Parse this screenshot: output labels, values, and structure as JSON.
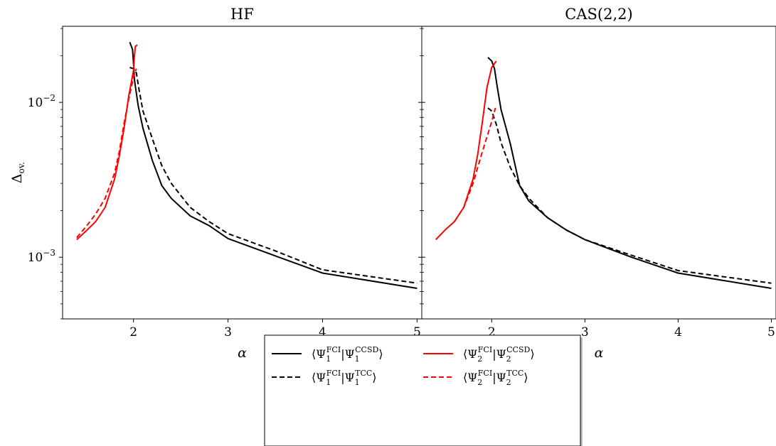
{
  "chart_data": [
    {
      "type": "line",
      "title": "HF",
      "xlabel": "α",
      "ylabel": "Δ",
      "ylabel_subscript": "ov.",
      "yscale": "log",
      "xlim": [
        1.25,
        5.05
      ],
      "ylim": [
        0.0004,
        0.031
      ],
      "x_ticks": [
        {
          "value": 2,
          "label": "2"
        },
        {
          "value": 3,
          "label": "3"
        },
        {
          "value": 4,
          "label": "4"
        },
        {
          "value": 5,
          "label": "5"
        }
      ],
      "y_ticks": [
        {
          "value": 0.001,
          "base": "10",
          "exponent": "−3"
        },
        {
          "value": 0.01,
          "base": "10",
          "exponent": "−2"
        }
      ],
      "series": [
        {
          "key": "s1ccsd",
          "color": "#000000",
          "dash": "solid",
          "x": [
            1.96,
            1.99,
            2.0,
            2.01,
            2.05,
            2.1,
            2.2,
            2.3,
            2.4,
            2.6,
            2.8,
            3.0,
            3.5,
            4.0,
            5.0
          ],
          "y": [
            0.0245,
            0.022,
            0.018,
            0.014,
            0.0095,
            0.0068,
            0.0042,
            0.0029,
            0.0024,
            0.00185,
            0.0016,
            0.00132,
            0.00102,
            0.00079,
            0.00063
          ]
        },
        {
          "key": "s1tcc",
          "color": "#000000",
          "dash": "dashed",
          "x": [
            1.96,
            2.0,
            2.03,
            2.06,
            2.1,
            2.2,
            2.3,
            2.4,
            2.6,
            2.8,
            3.0,
            3.5,
            4.0,
            5.0
          ],
          "y": [
            0.0168,
            0.0165,
            0.0155,
            0.012,
            0.0088,
            0.0058,
            0.0039,
            0.003,
            0.0021,
            0.0017,
            0.00142,
            0.0011,
            0.00083,
            0.00068
          ]
        },
        {
          "key": "s2ccsd",
          "color": "#ff0000",
          "dash": "solid",
          "x": [
            1.4,
            1.5,
            1.6,
            1.7,
            1.8,
            1.85,
            1.9,
            1.95,
            2.0,
            2.01,
            2.02,
            2.04
          ],
          "y": [
            0.0013,
            0.00148,
            0.0017,
            0.0021,
            0.0032,
            0.0045,
            0.0068,
            0.011,
            0.016,
            0.02,
            0.023,
            0.0235
          ]
        },
        {
          "key": "s2tcc",
          "color": "#ff0000",
          "dash": "dashed",
          "x": [
            1.4,
            1.5,
            1.6,
            1.7,
            1.8,
            1.85,
            1.9,
            1.95,
            2.0,
            2.03
          ],
          "y": [
            0.00134,
            0.00158,
            0.0019,
            0.0024,
            0.0035,
            0.0048,
            0.0073,
            0.0105,
            0.0145,
            0.0165
          ]
        }
      ]
    },
    {
      "type": "line",
      "title": "CAS(2,2)",
      "xlabel": "α",
      "ylabel": "",
      "yscale": "log",
      "xlim": [
        1.25,
        5.05
      ],
      "ylim": [
        0.0004,
        0.031
      ],
      "x_ticks": [
        {
          "value": 2,
          "label": "2"
        },
        {
          "value": 3,
          "label": "3"
        },
        {
          "value": 4,
          "label": "4"
        },
        {
          "value": 5,
          "label": "5"
        }
      ],
      "y_ticks": [],
      "series": [
        {
          "key": "s1ccsd",
          "color": "#000000",
          "dash": "solid",
          "x": [
            1.96,
            2.0,
            2.03,
            2.06,
            2.1,
            2.2,
            2.3,
            2.4,
            2.6,
            2.8,
            3.0,
            3.5,
            4.0,
            5.0
          ],
          "y": [
            0.0195,
            0.0185,
            0.0165,
            0.0125,
            0.009,
            0.0054,
            0.0029,
            0.0023,
            0.0018,
            0.0015,
            0.0013,
            0.001,
            0.00079,
            0.00063
          ]
        },
        {
          "key": "s1tcc",
          "color": "#000000",
          "dash": "dashed",
          "x": [
            1.96,
            2.0,
            2.05,
            2.1,
            2.2,
            2.3,
            2.4,
            2.6,
            2.8,
            3.0,
            3.5,
            4.0,
            5.0
          ],
          "y": [
            0.0092,
            0.0088,
            0.0072,
            0.0055,
            0.0038,
            0.0029,
            0.0024,
            0.0018,
            0.0015,
            0.0013,
            0.00103,
            0.00082,
            0.00068
          ]
        },
        {
          "key": "s2ccsd",
          "color": "#ff0000",
          "dash": "solid",
          "x": [
            1.4,
            1.5,
            1.6,
            1.7,
            1.8,
            1.85,
            1.9,
            1.95,
            2.0,
            2.05
          ],
          "y": [
            0.0013,
            0.0015,
            0.0017,
            0.0021,
            0.0032,
            0.0046,
            0.0075,
            0.0125,
            0.0168,
            0.0185
          ]
        },
        {
          "key": "s2tcc",
          "color": "#ff0000",
          "dash": "dashed",
          "x": [
            1.6,
            1.7,
            1.8,
            1.85,
            1.9,
            1.95,
            2.0,
            2.04
          ],
          "y": [
            0.0017,
            0.0021,
            0.003,
            0.0038,
            0.0048,
            0.006,
            0.0075,
            0.0092
          ]
        }
      ]
    }
  ],
  "legend": {
    "placement": "bottom-center",
    "entries": [
      {
        "key": "s1ccsd",
        "color": "#000000",
        "dash": "solid",
        "n": "1",
        "sup_left": "FCI",
        "sup_right": "CCSD"
      },
      {
        "key": "s2ccsd",
        "color": "#ff0000",
        "dash": "solid",
        "n": "2",
        "sup_left": "FCI",
        "sup_right": "CCSD"
      },
      {
        "key": "s1tcc",
        "color": "#000000",
        "dash": "dashed",
        "n": "1",
        "sup_left": "FCI",
        "sup_right": "TCC"
      },
      {
        "key": "s2tcc",
        "color": "#ff0000",
        "dash": "dashed",
        "n": "2",
        "sup_left": "FCI",
        "sup_right": "TCC"
      }
    ]
  }
}
